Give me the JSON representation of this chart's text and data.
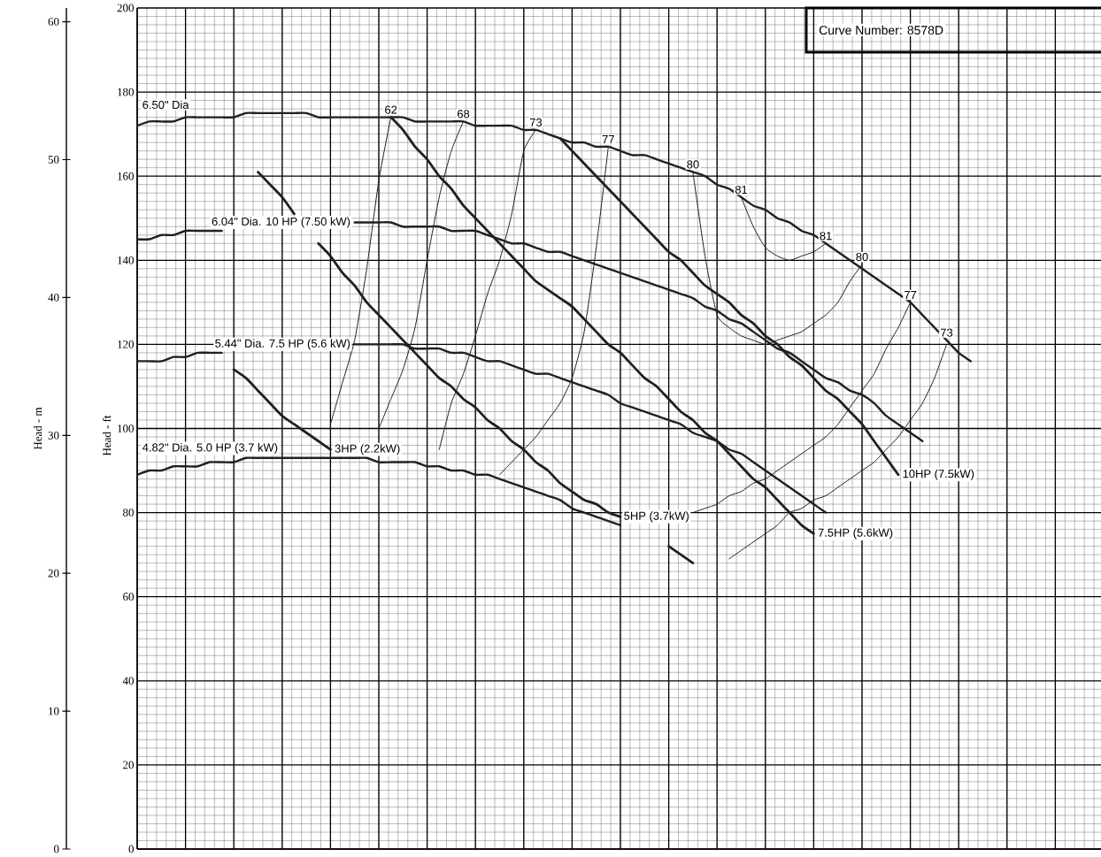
{
  "chart_data": {
    "type": "line",
    "ylabel": "Head - ft",
    "y2label": "Head - m",
    "categories": [
      null,
      null,
      null,
      null,
      null,
      null,
      null,
      null,
      null,
      null,
      null,
      null,
      null,
      null,
      null,
      null,
      null,
      null,
      null,
      null,
      null,
      null,
      null,
      null,
      null,
      null,
      null,
      null,
      null,
      null,
      null,
      null,
      null,
      null,
      null,
      null,
      null,
      null,
      null,
      null,
      null,
      null,
      null,
      null,
      null,
      null,
      null,
      null,
      null,
      null,
      null,
      null,
      null,
      null,
      null,
      null,
      null,
      null,
      null,
      null,
      null,
      null,
      null,
      null,
      null,
      null,
      null,
      null,
      null,
      null,
      null,
      null,
      null,
      null,
      null,
      null,
      null,
      null,
      null,
      null,
      null
    ],
    "ylim": [
      0,
      200
    ],
    "yticks": [
      0,
      20,
      40,
      60,
      80,
      100,
      120,
      140,
      160,
      180,
      200
    ],
    "y2lim": [
      0,
      61
    ],
    "y2ticks": [
      0,
      10,
      20,
      30,
      40,
      50,
      60
    ],
    "grid": true,
    "tick_labels": "y",
    "annotations": [
      "Curve Number: 8578D"
    ],
    "series": [
      {
        "name": "6.50\" Dia",
        "color": "#231f20",
        "values": [
          172,
          173,
          173,
          173,
          174,
          174,
          174,
          174,
          174,
          175,
          175,
          175,
          175,
          175,
          175,
          174,
          174,
          174,
          174,
          174,
          174,
          174,
          174,
          173,
          173,
          173,
          173,
          173,
          172,
          172,
          172,
          172,
          171,
          171,
          170,
          169,
          168,
          168,
          167,
          167,
          166,
          165,
          165,
          164,
          163,
          162,
          161,
          160,
          158,
          157,
          155,
          153,
          152,
          150,
          149,
          147,
          146,
          144,
          142,
          140,
          138,
          136,
          134,
          132,
          130,
          127,
          124,
          121,
          118,
          116,
          null,
          null,
          null,
          null,
          null,
          null,
          null,
          null,
          null,
          null,
          null
        ]
      },
      {
        "name": "6.04\" Dia. 10 HP (7.50 kW)",
        "color": "#231f20",
        "values": [
          145,
          145,
          146,
          146,
          147,
          147,
          147,
          147,
          null,
          null,
          null,
          null,
          null,
          null,
          null,
          null,
          null,
          null,
          149,
          149,
          149,
          149,
          148,
          148,
          148,
          148,
          147,
          147,
          147,
          146,
          145,
          144,
          144,
          143,
          142,
          142,
          141,
          140,
          139,
          138,
          137,
          136,
          135,
          134,
          133,
          132,
          131,
          129,
          128,
          126,
          125,
          123,
          121,
          119,
          118,
          116,
          114,
          112,
          111,
          109,
          108,
          106,
          103,
          101,
          99,
          97,
          null,
          null,
          null,
          null,
          null,
          null,
          null,
          null,
          null,
          null,
          null,
          null,
          null,
          null,
          null
        ]
      },
      {
        "name": "5.44\" Dia. 7.5 HP (5.6 kW)",
        "color": "#231f20",
        "values": [
          116,
          116,
          116,
          117,
          117,
          118,
          118,
          118,
          null,
          null,
          null,
          null,
          null,
          null,
          null,
          null,
          null,
          null,
          120,
          120,
          120,
          120,
          120,
          119,
          119,
          119,
          118,
          118,
          117,
          116,
          116,
          115,
          114,
          113,
          113,
          112,
          111,
          110,
          109,
          108,
          106,
          105,
          104,
          103,
          102,
          101,
          99,
          98,
          97,
          95,
          94,
          92,
          90,
          88,
          86,
          84,
          82,
          80,
          null,
          null,
          null,
          null,
          null,
          null,
          null,
          null,
          null,
          null,
          null,
          null,
          null,
          null,
          null,
          null,
          null,
          null,
          null,
          null,
          null,
          null,
          null
        ]
      },
      {
        "name": "4.82\" Dia. 5.0 HP (3.7 kW)",
        "color": "#231f20",
        "values": [
          89,
          90,
          90,
          91,
          91,
          91,
          92,
          92,
          92,
          93,
          93,
          93,
          93,
          93,
          93,
          93,
          93,
          93,
          93,
          93,
          92,
          92,
          92,
          92,
          91,
          91,
          90,
          90,
          89,
          89,
          88,
          87,
          86,
          85,
          84,
          83,
          81,
          80,
          79,
          78,
          77,
          null,
          null,
          null,
          null,
          null,
          null,
          null,
          null,
          null,
          null,
          null,
          null,
          null,
          null,
          null,
          null,
          null,
          null,
          null,
          null,
          null,
          null,
          null,
          null,
          null,
          null,
          null,
          null,
          null,
          null,
          null,
          null,
          null,
          null,
          null,
          null,
          null,
          null,
          null,
          null
        ]
      },
      {
        "name": "10HP (7.5kW)",
        "color": "#231f20",
        "values": [
          null,
          null,
          null,
          null,
          null,
          null,
          null,
          null,
          null,
          null,
          null,
          null,
          null,
          null,
          null,
          null,
          null,
          null,
          null,
          null,
          null,
          null,
          null,
          null,
          null,
          null,
          null,
          null,
          null,
          null,
          null,
          null,
          null,
          null,
          null,
          169,
          166,
          163,
          160,
          157,
          154,
          151,
          148,
          145,
          142,
          140,
          137,
          134,
          132,
          130,
          127,
          125,
          122,
          120,
          117,
          115,
          112,
          109,
          107,
          104,
          101,
          97,
          93,
          89,
          null,
          null,
          null,
          null,
          null,
          null,
          null,
          null,
          null,
          null,
          null,
          null,
          null,
          null,
          null,
          null,
          null
        ]
      },
      {
        "name": "7.5HP (5.6kW)",
        "color": "#231f20",
        "values": [
          null,
          null,
          null,
          null,
          null,
          null,
          null,
          null,
          null,
          null,
          null,
          null,
          null,
          null,
          null,
          null,
          null,
          null,
          null,
          null,
          null,
          174,
          171,
          167,
          164,
          160,
          157,
          153,
          150,
          147,
          144,
          141,
          138,
          135,
          133,
          131,
          129,
          126,
          123,
          120,
          118,
          115,
          112,
          110,
          107,
          104,
          102,
          99,
          97,
          94,
          91,
          88,
          86,
          83,
          80,
          77,
          75,
          null,
          null,
          null,
          null,
          null,
          null,
          null,
          null,
          null,
          null,
          null,
          null,
          null,
          null,
          null,
          null,
          null,
          null,
          null,
          null,
          null,
          null,
          null,
          null
        ]
      },
      {
        "name": "5HP (3.7kW)",
        "color": "#231f20",
        "values": [
          null,
          null,
          null,
          null,
          null,
          null,
          null,
          null,
          null,
          null,
          161,
          158,
          155,
          151,
          null,
          144,
          141,
          137,
          134,
          130,
          127,
          124,
          121,
          118,
          115,
          112,
          110,
          107,
          105,
          102,
          100,
          97,
          95,
          92,
          90,
          87,
          85,
          83,
          82,
          80,
          79,
          null,
          null,
          null,
          72,
          70,
          68,
          null,
          null,
          null,
          null,
          null,
          null,
          null,
          null,
          null,
          null,
          null,
          null,
          null,
          null,
          null,
          null,
          null,
          null,
          null,
          null,
          null,
          null,
          null,
          null,
          null,
          null,
          null,
          null,
          null,
          null,
          null,
          null,
          null,
          null
        ]
      },
      {
        "name": "3HP (2.2kW)",
        "color": "#231f20",
        "values": [
          null,
          null,
          null,
          null,
          null,
          null,
          null,
          null,
          114,
          112,
          109,
          106,
          103,
          101,
          99,
          97,
          95,
          null,
          null,
          null,
          null,
          null,
          null,
          null,
          null,
          null,
          null,
          null,
          null,
          null,
          null,
          null,
          null,
          null,
          null,
          null,
          null,
          null,
          null,
          null,
          null,
          null,
          null,
          null,
          null,
          null,
          null,
          null,
          null,
          null,
          null,
          null,
          null,
          null,
          null,
          null,
          null,
          null,
          null,
          null,
          null,
          null,
          null,
          null,
          null,
          null,
          null,
          null,
          null,
          null,
          null,
          null,
          null,
          null,
          null,
          null,
          null,
          null,
          null,
          null,
          null
        ]
      },
      {
        "name": "62",
        "color": "#231f20",
        "values": [
          null,
          null,
          null,
          null,
          null,
          null,
          null,
          null,
          null,
          null,
          null,
          null,
          null,
          null,
          null,
          null,
          101,
          111,
          121,
          138,
          159,
          174,
          null,
          null,
          null,
          null,
          null,
          null,
          null,
          null,
          null,
          null,
          null,
          null,
          null,
          null,
          null,
          null,
          null,
          null,
          null,
          null,
          null,
          null,
          null,
          null,
          null,
          null,
          null,
          null,
          null,
          null,
          null,
          null,
          null,
          null,
          null,
          null,
          null,
          null,
          null,
          null,
          null,
          null,
          null,
          null,
          null,
          null,
          null,
          null,
          null,
          null,
          null,
          null,
          null,
          null,
          null,
          null,
          null,
          null,
          null
        ]
      },
      {
        "name": "68",
        "color": "#231f20",
        "values": [
          null,
          null,
          null,
          null,
          null,
          null,
          null,
          null,
          null,
          null,
          null,
          null,
          null,
          null,
          null,
          null,
          null,
          null,
          null,
          null,
          100,
          107,
          114,
          124,
          140,
          155,
          166,
          173,
          null,
          null,
          null,
          null,
          null,
          null,
          null,
          null,
          null,
          null,
          null,
          null,
          null,
          null,
          null,
          null,
          null,
          null,
          null,
          null,
          null,
          null,
          null,
          null,
          null,
          null,
          null,
          null,
          null,
          null,
          null,
          null,
          null,
          null,
          null,
          null,
          null,
          null,
          null,
          null,
          null,
          null,
          null,
          null,
          null,
          null,
          null,
          null,
          null,
          null,
          null,
          null,
          null
        ]
      },
      {
        "name": "73",
        "color": "#231f20",
        "values": [
          null,
          null,
          null,
          null,
          null,
          null,
          null,
          null,
          null,
          null,
          null,
          null,
          null,
          null,
          null,
          null,
          null,
          null,
          null,
          null,
          null,
          null,
          null,
          null,
          null,
          95,
          106,
          113,
          122,
          132,
          140,
          151,
          166,
          171,
          null,
          null,
          null,
          null,
          null,
          null,
          null,
          null,
          null,
          null,
          null,
          null,
          null,
          null,
          null,
          null,
          null,
          null,
          null,
          null,
          null,
          null,
          null,
          null,
          null,
          null,
          null,
          null,
          null,
          null,
          null,
          null,
          null,
          null,
          null,
          null,
          null,
          null,
          null,
          null,
          null,
          null,
          null,
          null,
          null,
          null,
          null
        ]
      },
      {
        "name": "77",
        "color": "#231f20",
        "values": [
          null,
          null,
          null,
          null,
          null,
          null,
          null,
          null,
          null,
          null,
          null,
          null,
          null,
          null,
          null,
          null,
          null,
          null,
          null,
          null,
          null,
          null,
          null,
          null,
          null,
          null,
          null,
          null,
          null,
          null,
          89,
          92,
          95,
          98,
          102,
          106,
          112,
          123,
          143,
          167,
          null,
          null,
          null,
          null,
          null,
          null,
          null,
          null,
          null,
          null,
          null,
          null,
          null,
          null,
          null,
          null,
          null,
          null,
          null,
          null,
          null,
          null,
          null,
          null,
          null,
          null,
          null,
          null,
          null,
          null,
          null,
          null,
          null,
          null,
          null,
          null,
          null,
          null,
          null,
          null,
          null
        ]
      },
      {
        "name": "80",
        "color": "#231f20",
        "values": [
          null,
          null,
          null,
          null,
          null,
          null,
          null,
          null,
          null,
          null,
          null,
          null,
          null,
          null,
          null,
          null,
          null,
          null,
          null,
          null,
          null,
          null,
          null,
          null,
          null,
          null,
          null,
          null,
          null,
          null,
          null,
          null,
          null,
          null,
          null,
          null,
          null,
          null,
          null,
          null,
          null,
          null,
          null,
          null,
          null,
          null,
          161,
          141,
          127,
          124,
          122,
          121,
          120,
          121,
          122,
          123,
          125,
          127,
          130,
          135,
          139,
          null,
          null,
          null,
          null,
          null,
          null,
          null,
          null,
          null,
          null,
          null,
          null,
          null,
          null,
          null,
          null,
          null,
          null,
          null,
          null
        ]
      },
      {
        "name": "81",
        "color": "#231f20",
        "values": [
          null,
          null,
          null,
          null,
          null,
          null,
          null,
          null,
          null,
          null,
          null,
          null,
          null,
          null,
          null,
          null,
          null,
          null,
          null,
          null,
          null,
          null,
          null,
          null,
          null,
          null,
          null,
          null,
          null,
          null,
          null,
          null,
          null,
          null,
          null,
          null,
          null,
          null,
          null,
          null,
          null,
          null,
          null,
          null,
          null,
          null,
          null,
          null,
          null,
          null,
          155,
          148,
          143,
          141,
          140,
          141,
          142,
          144,
          null,
          null,
          null,
          null,
          null,
          null,
          null,
          null,
          null,
          null,
          null,
          null,
          null,
          null,
          null,
          null,
          null,
          null,
          null,
          null,
          null,
          null,
          null
        ]
      },
      {
        "name": "77",
        "color": "#231f20",
        "values": [
          null,
          null,
          null,
          null,
          null,
          null,
          null,
          null,
          null,
          null,
          null,
          null,
          null,
          null,
          null,
          null,
          null,
          null,
          null,
          null,
          null,
          null,
          null,
          null,
          null,
          null,
          null,
          null,
          null,
          null,
          null,
          null,
          null,
          null,
          null,
          null,
          null,
          null,
          null,
          null,
          null,
          null,
          null,
          null,
          null,
          null,
          80,
          81,
          82,
          84,
          85,
          87,
          88,
          90,
          92,
          94,
          96,
          98,
          101,
          105,
          109,
          113,
          119,
          124,
          130,
          null,
          null,
          null,
          null,
          null,
          null,
          null,
          null,
          null,
          null,
          null,
          null,
          null,
          null,
          null,
          null
        ]
      },
      {
        "name": "73",
        "color": "#231f20",
        "values": [
          null,
          null,
          null,
          null,
          null,
          null,
          null,
          null,
          null,
          null,
          null,
          null,
          null,
          null,
          null,
          null,
          null,
          null,
          null,
          null,
          null,
          null,
          null,
          null,
          null,
          null,
          null,
          null,
          null,
          null,
          null,
          null,
          null,
          null,
          null,
          null,
          null,
          null,
          null,
          null,
          null,
          null,
          null,
          null,
          null,
          null,
          null,
          null,
          null,
          69,
          71,
          73,
          75,
          77,
          80,
          81,
          83,
          84,
          86,
          88,
          90,
          92,
          95,
          98,
          102,
          106,
          112,
          120,
          null,
          null,
          null,
          null,
          null,
          null,
          null,
          null,
          null,
          null,
          null,
          null,
          null
        ]
      }
    ]
  }
}
